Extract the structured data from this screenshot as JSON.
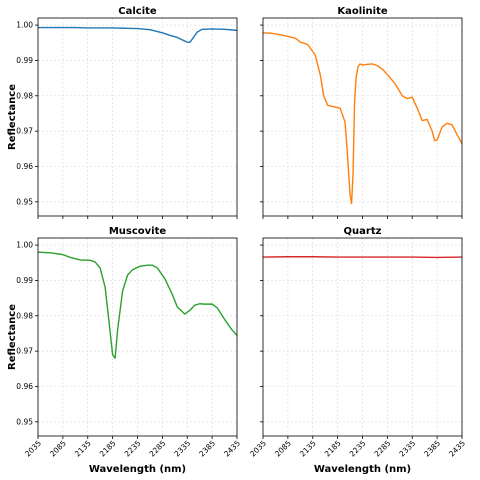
{
  "chart_data": {
    "type": "line",
    "layout": "2x2 grid, shared x and y axes",
    "xlabel": "Wavelength (nm)",
    "ylabel": "Reflectance",
    "xlim": [
      2035,
      2435
    ],
    "ylim": [
      0.946,
      1.002
    ],
    "xticks": [
      2035,
      2085,
      2135,
      2185,
      2235,
      2285,
      2335,
      2385,
      2435
    ],
    "yticks": [
      0.95,
      0.96,
      0.97,
      0.98,
      0.99,
      1.0
    ],
    "ytick_labels": [
      "0.95",
      "0.96",
      "0.97",
      "0.98",
      "0.99",
      "1.00"
    ],
    "grid": true,
    "panels": [
      {
        "title": "Calcite",
        "color": "#1f77b4",
        "x": [
          2035,
          2060,
          2085,
          2110,
          2135,
          2160,
          2185,
          2210,
          2235,
          2260,
          2285,
          2300,
          2315,
          2325,
          2335,
          2340,
          2345,
          2355,
          2365,
          2385,
          2410,
          2435
        ],
        "y": [
          0.9993,
          0.9993,
          0.9993,
          0.9993,
          0.9992,
          0.9992,
          0.9992,
          0.9991,
          0.999,
          0.9987,
          0.9978,
          0.9971,
          0.9965,
          0.9958,
          0.9952,
          0.9951,
          0.996,
          0.998,
          0.9988,
          0.9989,
          0.9988,
          0.9985
        ]
      },
      {
        "title": "Kaolinite",
        "color": "#ff7f0e",
        "x": [
          2035,
          2050,
          2065,
          2085,
          2100,
          2110,
          2125,
          2140,
          2150,
          2157,
          2165,
          2175,
          2190,
          2200,
          2205,
          2210,
          2213,
          2216,
          2219,
          2222,
          2226,
          2230,
          2235,
          2245,
          2255,
          2265,
          2275,
          2285,
          2300,
          2315,
          2325,
          2335,
          2345,
          2355,
          2365,
          2375,
          2380,
          2385,
          2395,
          2405,
          2415,
          2425,
          2435
        ],
        "y": [
          0.9978,
          0.9977,
          0.9974,
          0.9968,
          0.9963,
          0.9952,
          0.9945,
          0.9915,
          0.986,
          0.98,
          0.9773,
          0.977,
          0.9765,
          0.9725,
          0.963,
          0.952,
          0.9495,
          0.958,
          0.978,
          0.985,
          0.9882,
          0.989,
          0.9887,
          0.9889,
          0.989,
          0.9885,
          0.9875,
          0.986,
          0.9835,
          0.98,
          0.9792,
          0.9796,
          0.9765,
          0.973,
          0.9733,
          0.97,
          0.9673,
          0.9675,
          0.9712,
          0.9722,
          0.9718,
          0.969,
          0.9665
        ]
      },
      {
        "title": "Muscovite",
        "color": "#2ca02c",
        "x": [
          2035,
          2060,
          2085,
          2100,
          2120,
          2140,
          2150,
          2160,
          2170,
          2178,
          2185,
          2190,
          2195,
          2205,
          2215,
          2225,
          2240,
          2255,
          2265,
          2275,
          2290,
          2305,
          2315,
          2330,
          2340,
          2350,
          2360,
          2370,
          2385,
          2395,
          2410,
          2425,
          2435
        ],
        "y": [
          0.998,
          0.9978,
          0.9973,
          0.9965,
          0.9958,
          0.9957,
          0.9952,
          0.9935,
          0.988,
          0.978,
          0.969,
          0.968,
          0.976,
          0.987,
          0.9915,
          0.993,
          0.994,
          0.9943,
          0.9943,
          0.9935,
          0.9905,
          0.986,
          0.9825,
          0.9805,
          0.9815,
          0.983,
          0.9834,
          0.9833,
          0.9833,
          0.9823,
          0.979,
          0.976,
          0.9745
        ]
      },
      {
        "title": "Quartz",
        "color": "#d62728",
        "x": [
          2035,
          2085,
          2135,
          2185,
          2235,
          2285,
          2335,
          2385,
          2435
        ],
        "y": [
          0.9966,
          0.9967,
          0.9967,
          0.9966,
          0.9966,
          0.9966,
          0.9966,
          0.9965,
          0.9966
        ]
      }
    ]
  }
}
